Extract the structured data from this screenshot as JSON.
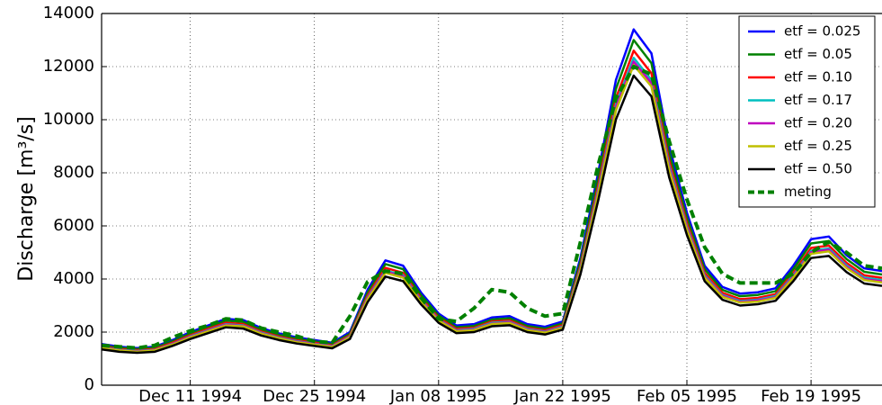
{
  "chart_data": {
    "type": "line",
    "y_label": "Discharge [m³/s]",
    "x": [
      "1994-12-01",
      "1994-12-03",
      "1994-12-05",
      "1994-12-07",
      "1994-12-09",
      "1994-12-11",
      "1994-12-13",
      "1994-12-15",
      "1994-12-17",
      "1994-12-19",
      "1994-12-21",
      "1994-12-23",
      "1994-12-25",
      "1994-12-27",
      "1994-12-29",
      "1994-12-31",
      "1995-01-02",
      "1995-01-04",
      "1995-01-06",
      "1995-01-08",
      "1995-01-10",
      "1995-01-12",
      "1995-01-14",
      "1995-01-16",
      "1995-01-18",
      "1995-01-20",
      "1995-01-22",
      "1995-01-24",
      "1995-01-26",
      "1995-01-28",
      "1995-01-30",
      "1995-02-01",
      "1995-02-03",
      "1995-02-05",
      "1995-02-07",
      "1995-02-09",
      "1995-02-11",
      "1995-02-13",
      "1995-02-15",
      "1995-02-17",
      "1995-02-19",
      "1995-02-21",
      "1995-02-23",
      "1995-02-25",
      "1995-02-27"
    ],
    "xlim": [
      "1994-12-01",
      "1995-02-27"
    ],
    "xticks": [
      {
        "value": "1994-12-11",
        "label": "Dec 11 1994"
      },
      {
        "value": "1994-12-25",
        "label": "Dec 25 1994"
      },
      {
        "value": "1995-01-08",
        "label": "Jan 08 1995"
      },
      {
        "value": "1995-01-22",
        "label": "Jan 22 1995"
      },
      {
        "value": "1995-02-05",
        "label": "Feb 05 1995"
      },
      {
        "value": "1995-02-19",
        "label": "Feb 19 1995"
      }
    ],
    "ylim": [
      0,
      14000
    ],
    "yticks": [
      0,
      2000,
      4000,
      6000,
      8000,
      10000,
      12000,
      14000
    ],
    "grid": true,
    "legend": "upper right",
    "series": [
      {
        "name": "etf = 0.025",
        "color": "#0000ff",
        "linestyle": "solid",
        "values": [
          1550,
          1450,
          1400,
          1450,
          1700,
          2000,
          2250,
          2500,
          2450,
          2150,
          1950,
          1800,
          1700,
          1600,
          2000,
          3600,
          4700,
          4500,
          3500,
          2700,
          2250,
          2300,
          2550,
          2600,
          2300,
          2200,
          2400,
          4800,
          8000,
          11500,
          13400,
          12500,
          9000,
          6500,
          4500,
          3700,
          3450,
          3500,
          3650,
          4500,
          5500,
          5600,
          4900,
          4400,
          4300
        ]
      },
      {
        "name": "etf = 0.05",
        "color": "#008000",
        "linestyle": "solid",
        "values": [
          1500,
          1410,
          1360,
          1410,
          1650,
          1940,
          2180,
          2430,
          2380,
          2090,
          1890,
          1750,
          1650,
          1550,
          1940,
          3490,
          4560,
          4370,
          3400,
          2620,
          2180,
          2230,
          2470,
          2520,
          2230,
          2130,
          2330,
          4660,
          7760,
          11160,
          13000,
          12130,
          8730,
          6310,
          4370,
          3590,
          3350,
          3400,
          3540,
          4370,
          5340,
          5430,
          4750,
          4270,
          4170
        ]
      },
      {
        "name": "etf = 0.10",
        "color": "#ff0000",
        "linestyle": "solid",
        "values": [
          1460,
          1360,
          1320,
          1360,
          1600,
          1880,
          2120,
          2350,
          2300,
          2020,
          1830,
          1690,
          1600,
          1500,
          1880,
          3380,
          4420,
          4230,
          3290,
          2540,
          2120,
          2160,
          2400,
          2440,
          2160,
          2070,
          2260,
          4510,
          7520,
          10810,
          12600,
          11750,
          8460,
          6110,
          4230,
          3480,
          3240,
          3290,
          3430,
          4230,
          5170,
          5260,
          4610,
          4140,
          4040
        ]
      },
      {
        "name": "etf = 0.17",
        "color": "#00bfbf",
        "linestyle": "solid",
        "values": [
          1430,
          1330,
          1290,
          1330,
          1560,
          1840,
          2070,
          2300,
          2250,
          1980,
          1790,
          1660,
          1560,
          1470,
          1840,
          3310,
          4320,
          4140,
          3220,
          2480,
          2070,
          2120,
          2350,
          2390,
          2120,
          2020,
          2210,
          4420,
          7360,
          10580,
          12330,
          11500,
          8280,
          5980,
          4140,
          3400,
          3170,
          3220,
          3360,
          4140,
          5060,
          5150,
          4510,
          4050,
          3960
        ]
      },
      {
        "name": "etf = 0.20",
        "color": "#bf00bf",
        "linestyle": "solid",
        "values": [
          1410,
          1320,
          1270,
          1320,
          1550,
          1820,
          2050,
          2280,
          2230,
          1960,
          1770,
          1640,
          1550,
          1460,
          1820,
          3280,
          4280,
          4100,
          3190,
          2460,
          2050,
          2090,
          2320,
          2370,
          2090,
          2000,
          2180,
          4370,
          7280,
          10470,
          12190,
          11380,
          8190,
          5920,
          4100,
          3370,
          3140,
          3190,
          3320,
          4100,
          5010,
          5100,
          4460,
          4000,
          3910
        ]
      },
      {
        "name": "etf = 0.25",
        "color": "#bfbf00",
        "linestyle": "solid",
        "values": [
          1400,
          1310,
          1260,
          1310,
          1530,
          1800,
          2030,
          2250,
          2210,
          1940,
          1760,
          1620,
          1530,
          1440,
          1800,
          3240,
          4230,
          4050,
          3150,
          2430,
          2030,
          2070,
          2300,
          2340,
          2070,
          1980,
          2160,
          4320,
          7200,
          10350,
          12060,
          11250,
          8100,
          5850,
          4050,
          3330,
          3110,
          3150,
          3290,
          4050,
          4950,
          5040,
          4410,
          3960,
          3870
        ]
      },
      {
        "name": "etf = 0.50",
        "color": "#000000",
        "linestyle": "solid",
        "values": [
          1350,
          1260,
          1220,
          1260,
          1480,
          1740,
          1960,
          2180,
          2130,
          1870,
          1700,
          1570,
          1480,
          1390,
          1740,
          3130,
          4090,
          3920,
          3050,
          2350,
          1960,
          2000,
          2220,
          2260,
          2000,
          1910,
          2090,
          4180,
          6960,
          10010,
          11660,
          10880,
          7830,
          5660,
          3920,
          3220,
          3000,
          3050,
          3180,
          3920,
          4790,
          4870,
          4260,
          3830,
          3740
        ]
      },
      {
        "name": "meting",
        "color": "#008000",
        "linestyle": "dashed",
        "values": [
          1500,
          1450,
          1400,
          1500,
          1800,
          2050,
          2250,
          2500,
          2450,
          2150,
          2000,
          1850,
          1650,
          1600,
          2600,
          3900,
          4300,
          4200,
          3300,
          2500,
          2400,
          2900,
          3600,
          3500,
          2900,
          2600,
          2700,
          5400,
          8300,
          10800,
          12000,
          11700,
          9200,
          7000,
          5200,
          4200,
          3850,
          3850,
          3850,
          4200,
          5000,
          5400,
          5000,
          4500,
          4400
        ]
      }
    ]
  }
}
